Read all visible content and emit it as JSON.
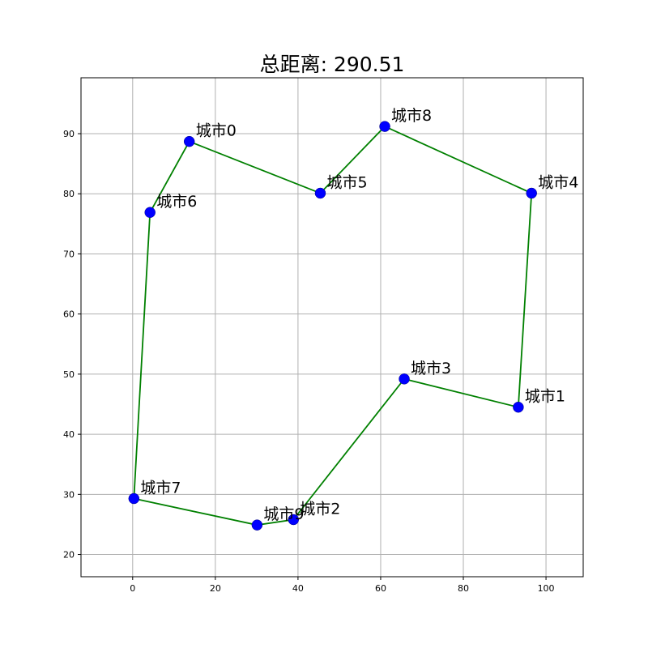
{
  "chart_data": {
    "type": "scatter",
    "title": "总距离: 290.51",
    "xlabel": "",
    "ylabel": "",
    "xlim": [
      -12.5,
      109
    ],
    "ylim": [
      16.3,
      99.3
    ],
    "xticks": [
      0,
      20,
      40,
      60,
      80,
      100
    ],
    "yticks": [
      20,
      30,
      40,
      50,
      60,
      70,
      80,
      90
    ],
    "grid": true,
    "point_color": "#0000ff",
    "route_color": "#008000",
    "points": [
      {
        "label": "城市0",
        "x": 13.7,
        "y": 88.7
      },
      {
        "label": "城市1",
        "x": 93.3,
        "y": 44.5
      },
      {
        "label": "城市2",
        "x": 38.9,
        "y": 25.8
      },
      {
        "label": "城市3",
        "x": 65.7,
        "y": 49.2
      },
      {
        "label": "城市4",
        "x": 96.5,
        "y": 80.1
      },
      {
        "label": "城市5",
        "x": 45.4,
        "y": 80.1
      },
      {
        "label": "城市6",
        "x": 4.2,
        "y": 76.9
      },
      {
        "label": "城市7",
        "x": 0.3,
        "y": 29.3
      },
      {
        "label": "城市8",
        "x": 61.0,
        "y": 91.2
      },
      {
        "label": "城市9",
        "x": 30.1,
        "y": 24.9
      }
    ],
    "route": [
      7,
      6,
      0,
      5,
      8,
      4,
      1,
      3,
      2,
      9,
      7
    ]
  }
}
